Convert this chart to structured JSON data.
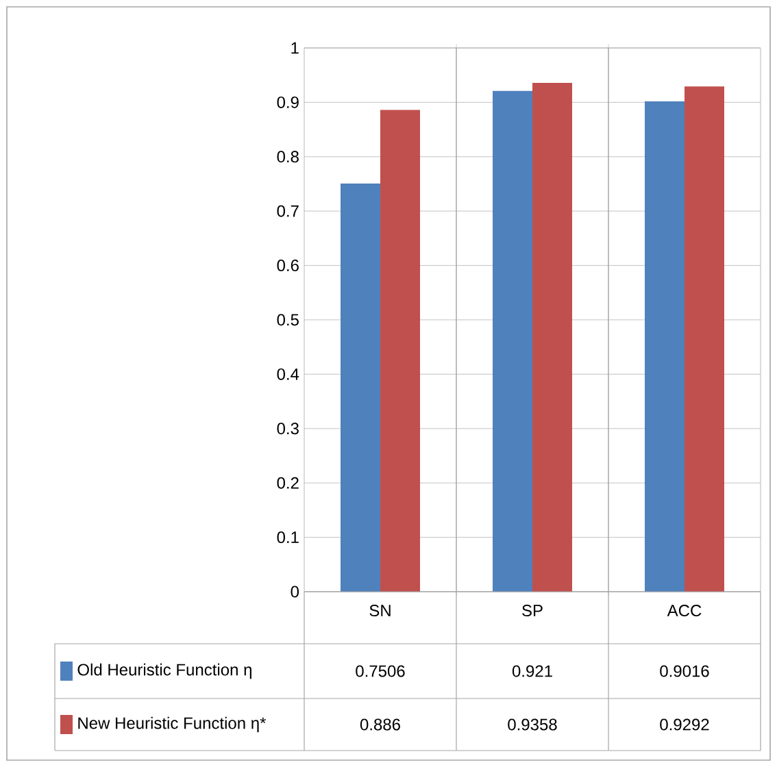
{
  "chart_data": {
    "type": "bar",
    "categories": [
      "SN",
      "SP",
      "ACC"
    ],
    "series": [
      {
        "name": "Old Heuristic  Function η",
        "color": "#4f81bd",
        "values": [
          0.7506,
          0.921,
          0.9016
        ]
      },
      {
        "name": "New Heuristic Function η*",
        "color": "#c0504d",
        "values": [
          0.886,
          0.9358,
          0.9292
        ]
      }
    ],
    "ylim": [
      0,
      1
    ],
    "yticks": [
      0,
      0.1,
      0.2,
      0.3,
      0.4,
      0.5,
      0.6,
      0.7,
      0.8,
      0.9,
      1
    ],
    "grid": "y",
    "legend": "bottom",
    "data_labels": true
  }
}
